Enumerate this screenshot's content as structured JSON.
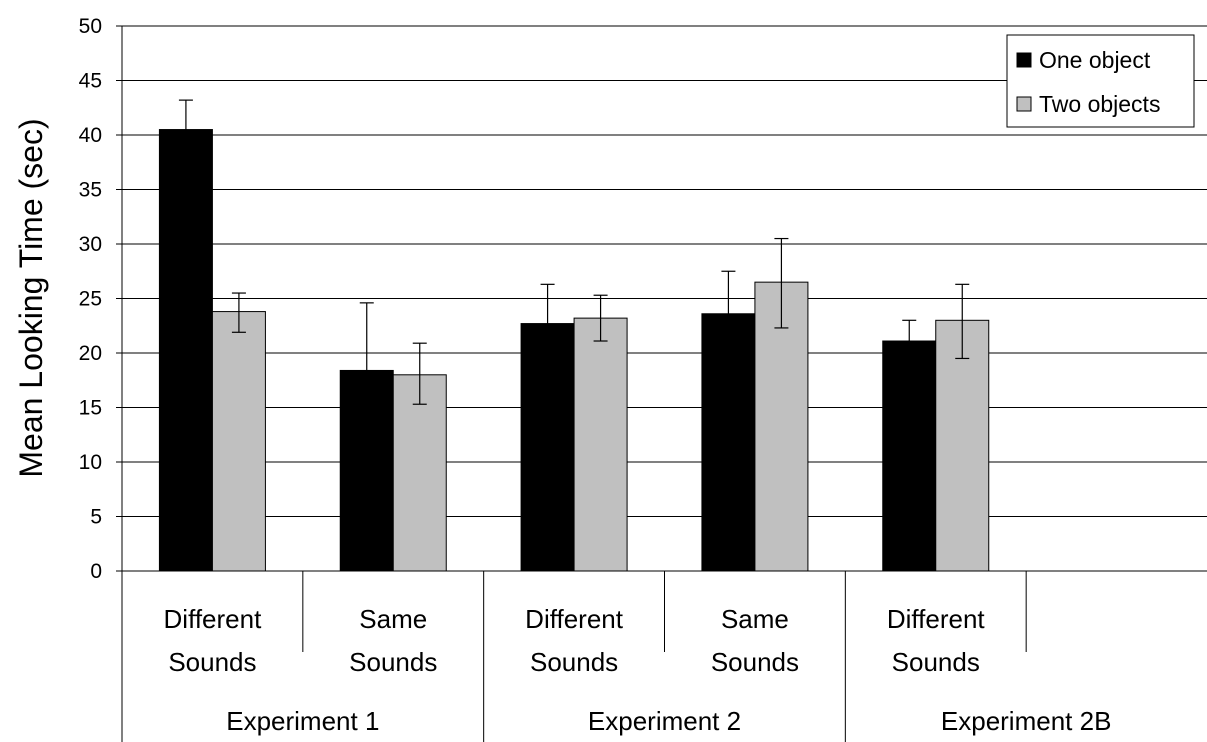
{
  "chart_data": {
    "type": "bar",
    "ylabel": "Mean Looking Time (sec)",
    "ylim": [
      0,
      50
    ],
    "yticks": [
      0,
      5,
      10,
      15,
      20,
      25,
      30,
      35,
      40,
      45,
      50
    ],
    "grid": true,
    "legend_position": "top-right",
    "categories": [
      {
        "line1": "Different",
        "line2": "Sounds"
      },
      {
        "line1": "Same",
        "line2": "Sounds"
      },
      {
        "line1": "Different",
        "line2": "Sounds"
      },
      {
        "line1": "Same",
        "line2": "Sounds"
      },
      {
        "line1": "Different",
        "line2": "Sounds"
      },
      {
        "line1": "",
        "line2": ""
      }
    ],
    "groups": [
      {
        "label": "Experiment 1",
        "span": 2
      },
      {
        "label": "Experiment 2",
        "span": 2
      },
      {
        "label": "Experiment 2B",
        "span": 2
      }
    ],
    "series": [
      {
        "name": "One object",
        "color": "#000000",
        "values": [
          40.5,
          18.4,
          22.7,
          23.6,
          21.1,
          null
        ],
        "err_upper": [
          43.2,
          24.6,
          26.3,
          27.5,
          23.0,
          null
        ],
        "err_lower": [
          40.5,
          18.4,
          22.7,
          23.6,
          21.1,
          null
        ]
      },
      {
        "name": "Two objects",
        "color": "#c0c0c0",
        "values": [
          23.8,
          18.0,
          23.2,
          26.5,
          23.0,
          null
        ],
        "err_upper": [
          25.5,
          20.9,
          25.3,
          30.5,
          26.3,
          null
        ],
        "err_lower": [
          21.9,
          15.3,
          21.1,
          22.3,
          19.5,
          null
        ]
      }
    ]
  }
}
